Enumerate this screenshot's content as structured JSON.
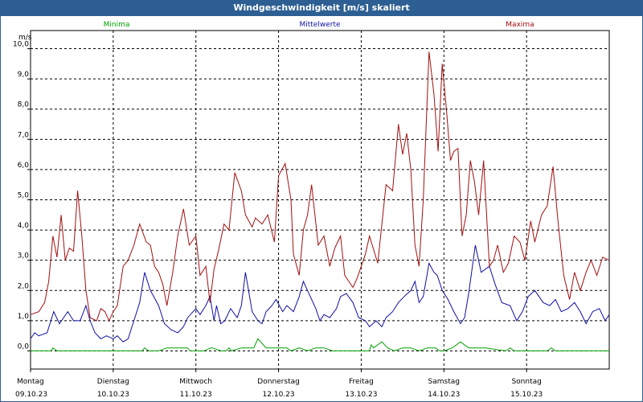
{
  "window": {
    "title": "Windgeschwindigkeit [m/s] skaliert"
  },
  "chart_data": {
    "type": "line",
    "title": "Windgeschwindigkeit [m/s] skaliert",
    "ylabel": "m/s",
    "ylim": [
      -0.6,
      10.6
    ],
    "yticks": [
      "0,0",
      "1,0",
      "2,0",
      "3,0",
      "4,0",
      "5,0",
      "6,0",
      "7,0",
      "8,0",
      "9,0",
      "10,0"
    ],
    "xlim": [
      0,
      7
    ],
    "x_ticks": [
      {
        "day": "Montag",
        "date": "09.10.23"
      },
      {
        "day": "Dienstag",
        "date": "10.10.23"
      },
      {
        "day": "Mittwoch",
        "date": "11.10.23"
      },
      {
        "day": "Donnerstag",
        "date": "12.10.23"
      },
      {
        "day": "Freitag",
        "date": "13.10.23"
      },
      {
        "day": "Samstag",
        "date": "14.10.23"
      },
      {
        "day": "Sonntag",
        "date": "15.10.23"
      }
    ],
    "grid": true,
    "legend_position": "top",
    "series": [
      {
        "name": "Minima",
        "color": "#00a000",
        "x": [
          0,
          0.25,
          0.27,
          0.32,
          1.0,
          1.35,
          1.38,
          1.43,
          1.55,
          1.65,
          1.9,
          1.93,
          1.97,
          2.1,
          2.18,
          2.2,
          2.3,
          2.37,
          2.4,
          2.43,
          2.55,
          2.65,
          2.7,
          2.75,
          2.85,
          2.95,
          3.1,
          3.15,
          3.25,
          3.35,
          3.45,
          3.55,
          3.65,
          3.9,
          4.1,
          4.12,
          4.15,
          4.2,
          4.25,
          4.32,
          4.4,
          4.5,
          4.6,
          4.7,
          4.8,
          4.9,
          4.95,
          5.0,
          5.1,
          5.2,
          5.3,
          5.5,
          5.75,
          5.8,
          5.85,
          6.25,
          6.3,
          6.35,
          7.0
        ],
        "y": [
          0.0,
          0.0,
          0.1,
          0.0,
          0.0,
          0.0,
          0.1,
          0.0,
          0.0,
          0.1,
          0.1,
          0.0,
          0.0,
          0.0,
          0.1,
          0.1,
          0.0,
          0.0,
          0.1,
          0.0,
          0.1,
          0.1,
          0.1,
          0.4,
          0.1,
          0.1,
          0.1,
          0.0,
          0.1,
          0.0,
          0.1,
          0.1,
          0.0,
          0.0,
          0.0,
          0.2,
          0.1,
          0.2,
          0.3,
          0.1,
          0.0,
          0.1,
          0.1,
          0.0,
          0.1,
          0.1,
          0.0,
          0.0,
          0.1,
          0.3,
          0.1,
          0.1,
          0.0,
          0.1,
          0.0,
          0.0,
          0.1,
          0.0,
          0.0
        ]
      },
      {
        "name": "Mittelwerte",
        "color": "#1010a0",
        "x": [
          0,
          0.05,
          0.1,
          0.2,
          0.28,
          0.35,
          0.45,
          0.52,
          0.6,
          0.67,
          0.72,
          0.78,
          0.85,
          0.92,
          1.0,
          1.05,
          1.12,
          1.18,
          1.25,
          1.32,
          1.38,
          1.45,
          1.55,
          1.62,
          1.7,
          1.78,
          1.85,
          1.9,
          2.0,
          2.05,
          2.12,
          2.17,
          2.22,
          2.25,
          2.3,
          2.35,
          2.42,
          2.5,
          2.55,
          2.6,
          2.68,
          2.75,
          2.8,
          2.85,
          2.92,
          2.97,
          3.05,
          3.1,
          3.18,
          3.25,
          3.3,
          3.35,
          3.45,
          3.5,
          3.55,
          3.62,
          3.7,
          3.75,
          3.82,
          3.9,
          3.97,
          4.05,
          4.1,
          4.18,
          4.25,
          4.3,
          4.38,
          4.45,
          4.52,
          4.6,
          4.65,
          4.7,
          4.75,
          4.82,
          4.88,
          4.92,
          4.98,
          5.05,
          5.12,
          5.2,
          5.25,
          5.3,
          5.38,
          5.45,
          5.55,
          5.62,
          5.7,
          5.8,
          5.88,
          5.95,
          6.02,
          6.1,
          6.2,
          6.28,
          6.35,
          6.42,
          6.5,
          6.58,
          6.65,
          6.72,
          6.8,
          6.88,
          6.95,
          7.0
        ],
        "y": [
          0.4,
          0.6,
          0.5,
          0.6,
          1.3,
          0.9,
          1.3,
          1.0,
          1.0,
          1.5,
          1.0,
          0.6,
          0.4,
          0.5,
          0.4,
          0.5,
          0.3,
          0.4,
          1.0,
          1.6,
          2.6,
          2.0,
          1.5,
          0.9,
          0.7,
          0.6,
          0.8,
          1.1,
          1.4,
          1.2,
          1.5,
          1.8,
          1.0,
          1.5,
          0.9,
          1.0,
          1.4,
          1.1,
          1.5,
          2.6,
          1.3,
          1.0,
          0.9,
          1.3,
          1.5,
          1.7,
          1.3,
          1.5,
          1.3,
          1.8,
          2.3,
          2.0,
          1.4,
          1.0,
          1.2,
          1.1,
          1.4,
          1.8,
          1.9,
          1.6,
          1.1,
          1.0,
          0.8,
          1.0,
          0.8,
          1.1,
          1.3,
          1.6,
          1.8,
          2.0,
          2.3,
          1.6,
          1.8,
          2.9,
          2.6,
          2.5,
          2.0,
          1.7,
          1.3,
          0.9,
          1.1,
          1.9,
          3.5,
          2.6,
          2.8,
          2.2,
          1.6,
          1.5,
          1.0,
          1.3,
          1.8,
          2.0,
          1.6,
          1.5,
          1.7,
          1.3,
          1.4,
          1.6,
          1.3,
          0.9,
          1.3,
          1.4,
          1.0,
          1.2
        ]
      },
      {
        "name": "Maxima",
        "color": "#a01010",
        "x": [
          0,
          0.1,
          0.17,
          0.22,
          0.27,
          0.32,
          0.37,
          0.42,
          0.47,
          0.52,
          0.57,
          0.62,
          0.67,
          0.72,
          0.8,
          0.85,
          0.9,
          0.95,
          1.0,
          1.05,
          1.12,
          1.18,
          1.25,
          1.32,
          1.4,
          1.45,
          1.5,
          1.55,
          1.6,
          1.65,
          1.72,
          1.78,
          1.85,
          1.92,
          2.0,
          2.05,
          2.12,
          2.17,
          2.22,
          2.28,
          2.34,
          2.4,
          2.47,
          2.55,
          2.6,
          2.68,
          2.72,
          2.8,
          2.87,
          2.95,
          3.0,
          3.08,
          3.15,
          3.18,
          3.25,
          3.3,
          3.35,
          3.4,
          3.48,
          3.55,
          3.62,
          3.68,
          3.75,
          3.8,
          3.85,
          3.9,
          3.95,
          4.05,
          4.1,
          4.2,
          4.3,
          4.38,
          4.45,
          4.5,
          4.55,
          4.6,
          4.65,
          4.7,
          4.75,
          4.82,
          4.88,
          4.93,
          4.98,
          5.03,
          5.08,
          5.12,
          5.17,
          5.22,
          5.27,
          5.32,
          5.37,
          5.42,
          5.48,
          5.55,
          5.6,
          5.65,
          5.72,
          5.78,
          5.85,
          5.92,
          5.98,
          6.05,
          6.1,
          6.18,
          6.25,
          6.32,
          6.38,
          6.45,
          6.52,
          6.58,
          6.65,
          6.72,
          6.78,
          6.85,
          6.92,
          7.0
        ],
        "y": [
          1.2,
          1.3,
          1.6,
          2.3,
          3.8,
          3.1,
          4.5,
          3.0,
          3.4,
          3.3,
          5.3,
          3.8,
          2.0,
          1.1,
          1.0,
          1.4,
          1.3,
          1.0,
          1.3,
          1.5,
          2.8,
          3.0,
          3.5,
          4.2,
          3.6,
          3.5,
          2.8,
          2.6,
          2.2,
          1.5,
          2.6,
          3.8,
          4.7,
          3.5,
          3.8,
          2.5,
          2.8,
          1.6,
          2.7,
          3.4,
          4.2,
          4.0,
          5.9,
          5.3,
          4.5,
          4.1,
          4.4,
          4.2,
          4.5,
          3.6,
          5.8,
          6.2,
          5.0,
          3.2,
          2.5,
          4.0,
          4.5,
          5.5,
          3.5,
          3.8,
          2.8,
          3.4,
          3.8,
          2.5,
          2.3,
          2.1,
          2.4,
          3.2,
          3.8,
          2.9,
          5.5,
          5.3,
          7.5,
          6.5,
          7.2,
          6.0,
          3.5,
          2.8,
          5.0,
          9.9,
          8.5,
          6.6,
          9.5,
          8.0,
          6.3,
          6.6,
          6.7,
          3.8,
          4.5,
          6.3,
          5.6,
          4.5,
          6.3,
          2.8,
          3.0,
          3.5,
          2.6,
          2.9,
          3.8,
          3.6,
          3.0,
          4.3,
          3.6,
          4.5,
          4.8,
          6.1,
          4.3,
          2.5,
          1.7,
          2.6,
          2.0,
          2.6,
          3.0,
          2.5,
          3.1,
          3.0
        ]
      }
    ]
  }
}
